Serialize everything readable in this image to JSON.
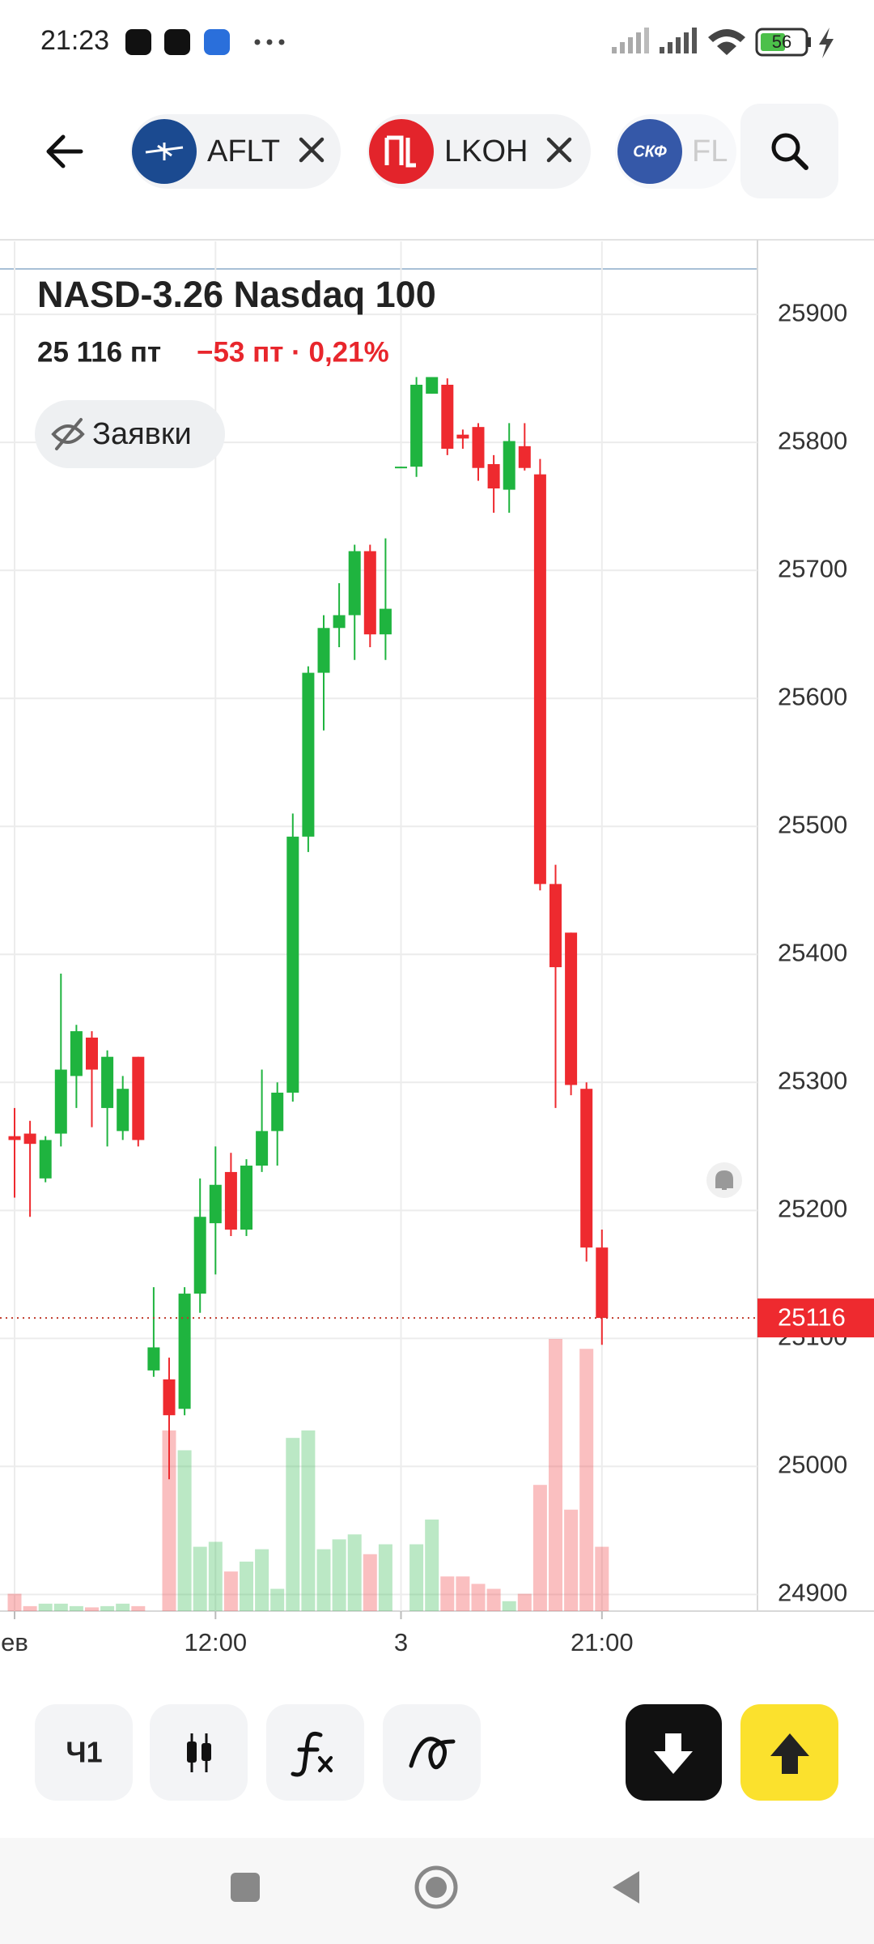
{
  "status_bar": {
    "time": "21:23",
    "battery": "56"
  },
  "tabs": [
    {
      "label": "AFLT"
    },
    {
      "label": "LKOH"
    },
    {
      "logo": "СКФ",
      "label": "FL"
    }
  ],
  "header": {
    "price": "25 116 пт",
    "change": "−53 пт · 0,21%",
    "orders_button": "Заявки"
  },
  "toolbar": {
    "interval": "Ч1"
  },
  "chart_data": {
    "type": "candlestick",
    "title": "NASD-3.26 Nasdaq 100",
    "categories": [
      "ев",
      null,
      null,
      null,
      null,
      null,
      null,
      null,
      null,
      null,
      null,
      null,
      null,
      "12:00",
      null,
      null,
      null,
      null,
      null,
      null,
      null,
      null,
      null,
      null,
      null,
      "3",
      null,
      null,
      null,
      null,
      null,
      null,
      null,
      null,
      null,
      null,
      null,
      null,
      "21:00"
    ],
    "open": [
      25258,
      25260,
      25225,
      25260,
      25305,
      25335,
      25280,
      25262,
      25320,
      25075,
      25068,
      25045,
      25135,
      25190,
      25230,
      25185,
      25235,
      25262,
      25292,
      25492,
      25620,
      25655,
      25665,
      25715,
      25650,
      25780,
      25781,
      25838,
      25845,
      25806,
      25812,
      25783,
      25763,
      25797,
      25775,
      25455,
      25417,
      25295,
      25171
    ],
    "high": [
      25280,
      25270,
      25258,
      25385,
      25345,
      25340,
      25325,
      25305,
      25320,
      25140,
      25085,
      25140,
      25225,
      25250,
      25245,
      25240,
      25310,
      25300,
      25510,
      25625,
      25665,
      25690,
      25720,
      25720,
      25725,
      25781,
      25851,
      25851,
      25850,
      25810,
      25815,
      25790,
      25815,
      25815,
      25787,
      25470,
      25417,
      25300,
      25185
    ],
    "low": [
      25210,
      25195,
      25222,
      25250,
      25280,
      25265,
      25250,
      25255,
      25250,
      25070,
      24990,
      25040,
      25120,
      25150,
      25180,
      25180,
      25230,
      25235,
      25285,
      25480,
      25575,
      25640,
      25630,
      25640,
      25630,
      25780,
      25773,
      25838,
      25790,
      25795,
      25770,
      25745,
      25745,
      25778,
      25450,
      25280,
      25290,
      25160,
      25095
    ],
    "close": [
      25255,
      25252,
      25255,
      25310,
      25340,
      25310,
      25320,
      25295,
      25255,
      25093,
      25040,
      25135,
      25195,
      25220,
      25185,
      25235,
      25262,
      25292,
      25492,
      25620,
      25655,
      25665,
      25715,
      25650,
      25670,
      25781,
      25845,
      25851,
      25795,
      25803,
      25780,
      25764,
      25801,
      25780,
      25455,
      25390,
      25298,
      25171,
      25116
    ],
    "volume": [
      14,
      4,
      6,
      6,
      4,
      3,
      4,
      6,
      4,
      0,
      146,
      130,
      52,
      56,
      32,
      40,
      50,
      18,
      140,
      146,
      50,
      58,
      62,
      46,
      54,
      0,
      54,
      74,
      28,
      28,
      22,
      18,
      8,
      14,
      102,
      220,
      82,
      212,
      52
    ],
    "ylim": [
      24887,
      25957
    ],
    "yticks": [
      24900,
      25000,
      25100,
      25200,
      25300,
      25400,
      25500,
      25600,
      25700,
      25800,
      25900
    ],
    "last_price": 25116,
    "up_color": "#1fb43f",
    "down_color": "#ee2a2f",
    "grid": true
  }
}
